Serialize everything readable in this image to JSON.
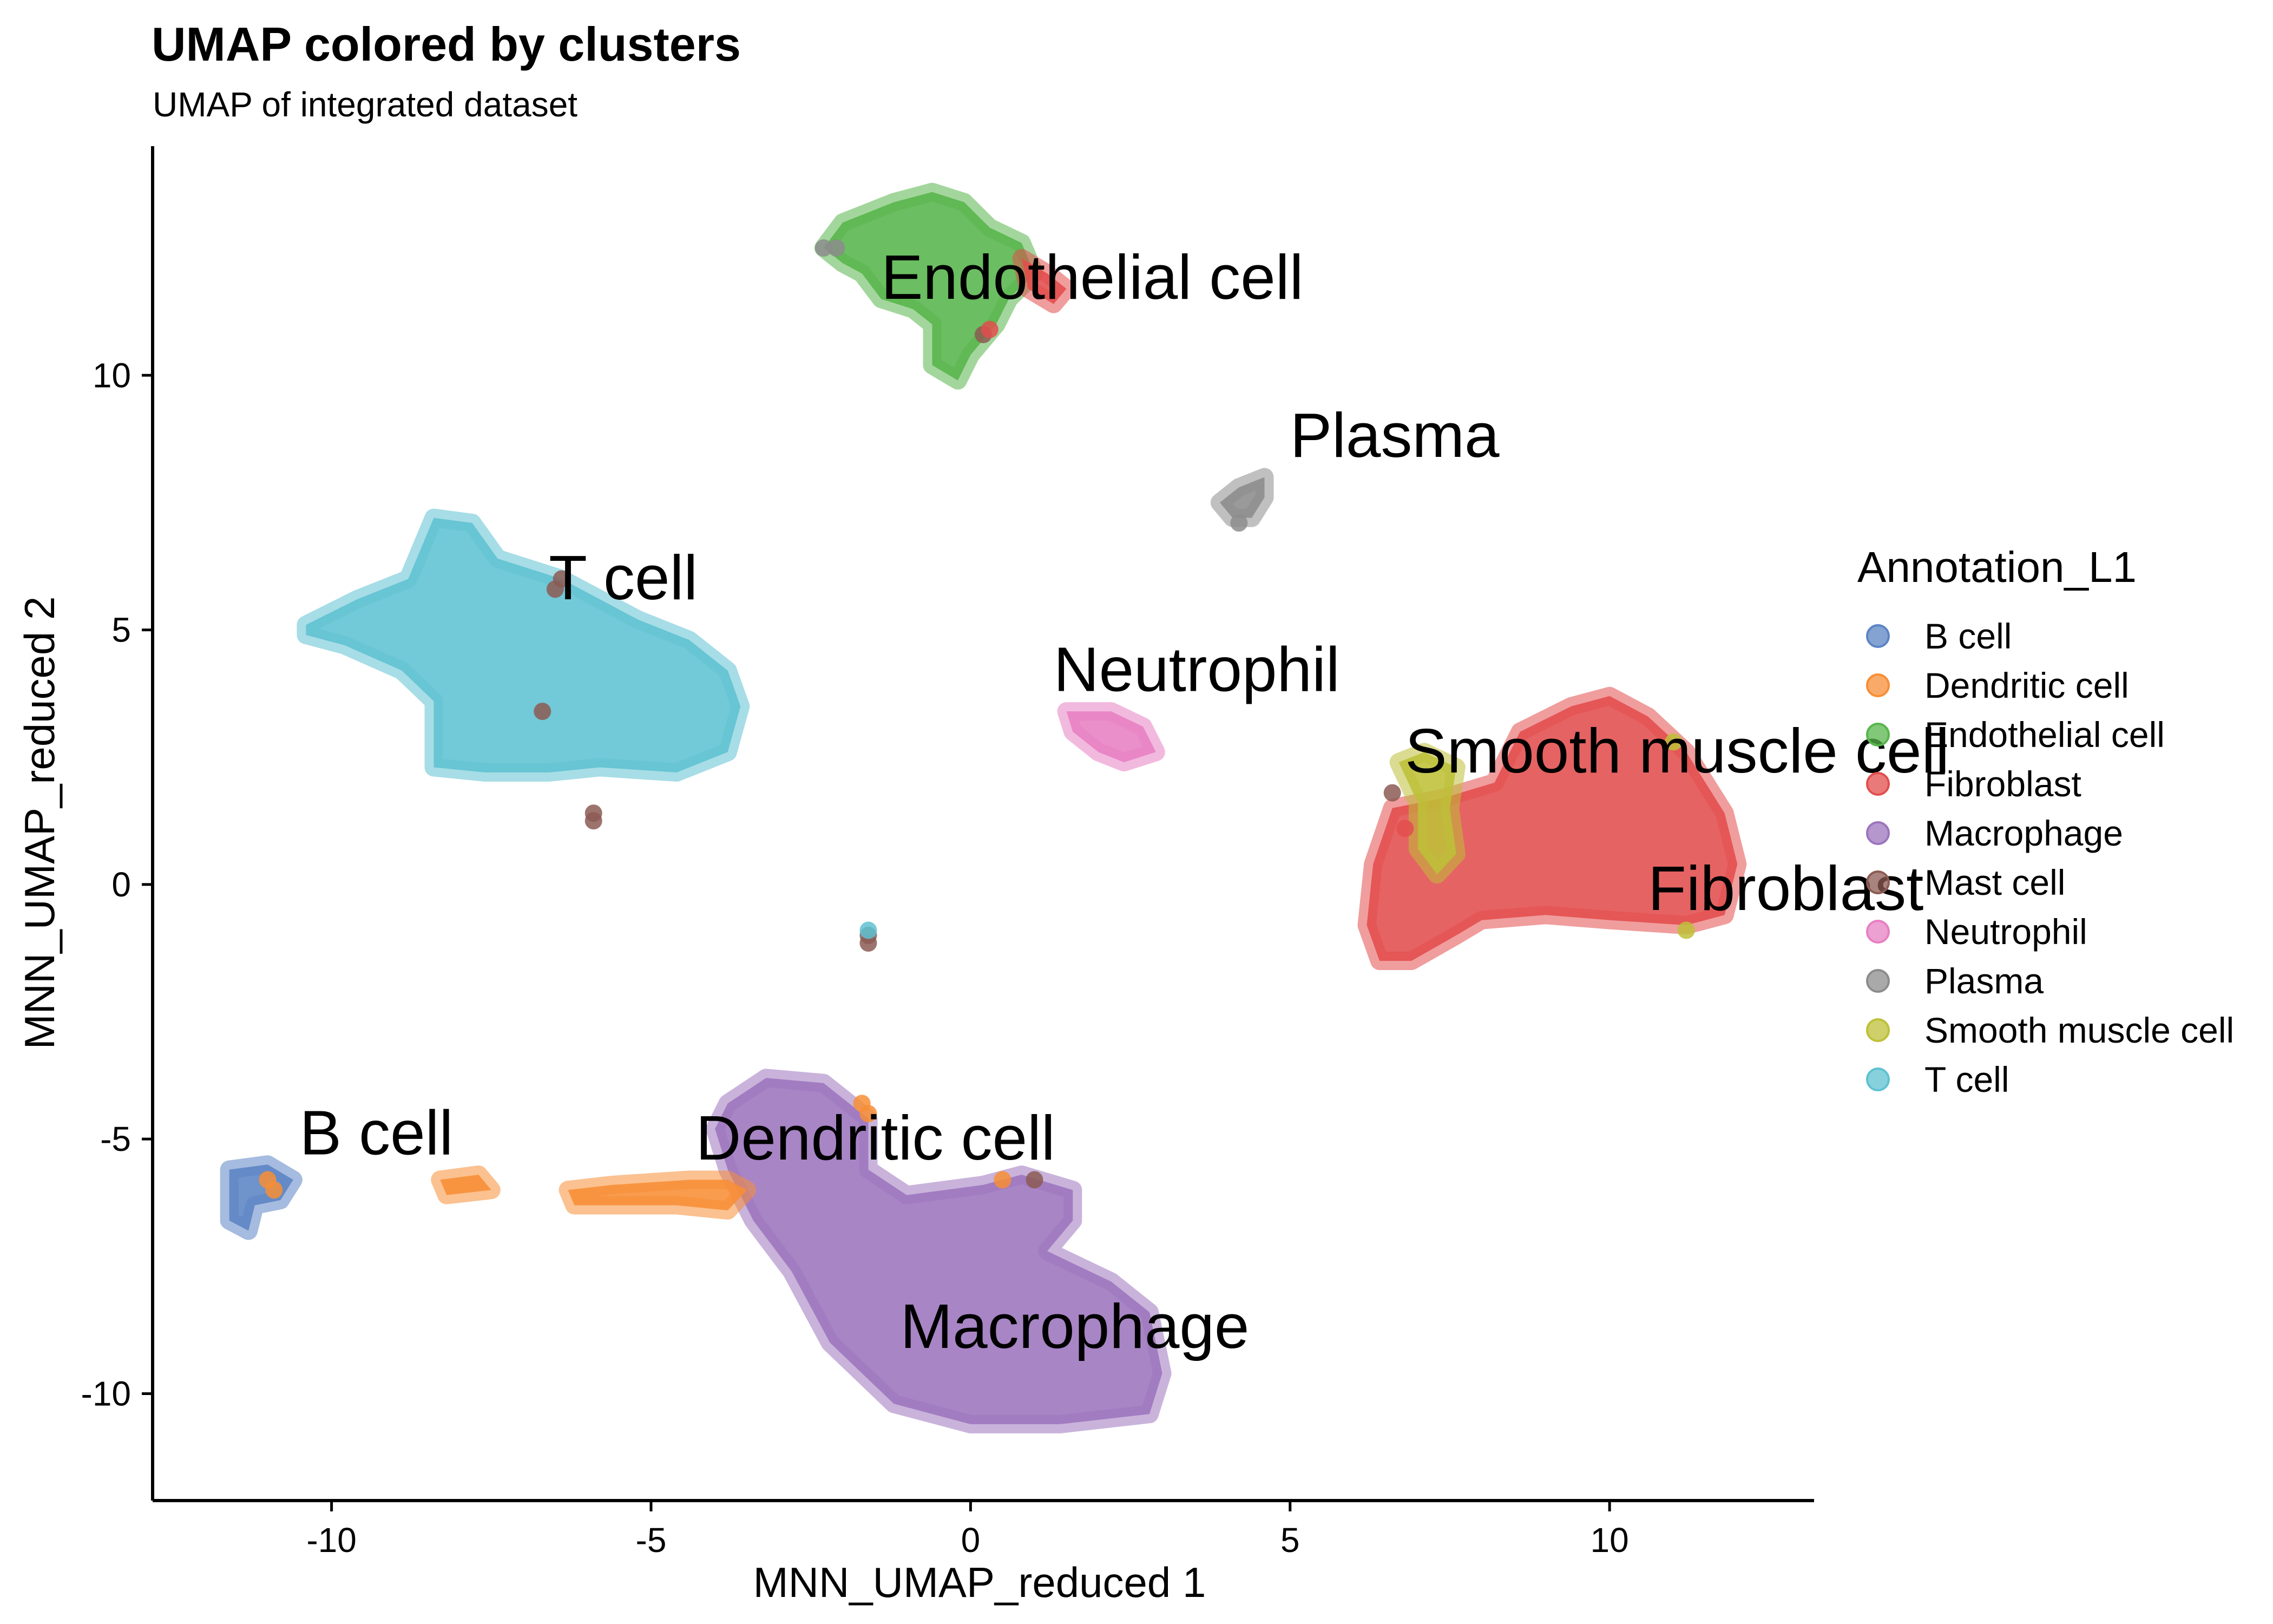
{
  "chart_data": {
    "type": "scatter",
    "title": "UMAP colored by clusters",
    "subtitle": "UMAP of integrated dataset",
    "xlabel": "MNN_UMAP_reduced 1",
    "ylabel": "MNN_UMAP_reduced 2",
    "xlim": [
      -12.8,
      13.2
    ],
    "ylim": [
      -12.1,
      14.5
    ],
    "xticks": [
      -10,
      -5,
      0,
      5,
      10
    ],
    "yticks": [
      -10,
      -5,
      0,
      5,
      10
    ],
    "xtick_labels": [
      "-10",
      "-5",
      "0",
      "5",
      "10"
    ],
    "ytick_labels": [
      "-10",
      "-5",
      "0",
      "5",
      "10"
    ],
    "grid": false,
    "legend": {
      "title": "Annotation_L1",
      "position": "right",
      "entries": [
        {
          "name": "B cell",
          "color": "#5b84c4"
        },
        {
          "name": "Dendritic cell",
          "color": "#f88e35"
        },
        {
          "name": "Endothelial cell",
          "color": "#57b54b"
        },
        {
          "name": "Fibroblast",
          "color": "#e34d4d"
        },
        {
          "name": "Macrophage",
          "color": "#9c74bd"
        },
        {
          "name": "Mast cell",
          "color": "#8c5b53"
        },
        {
          "name": "Neutrophil",
          "color": "#e780c3"
        },
        {
          "name": "Plasma",
          "color": "#8c8c8c"
        },
        {
          "name": "Smooth muscle cell",
          "color": "#bec038"
        },
        {
          "name": "T cell",
          "color": "#5fc1d1"
        }
      ]
    },
    "clusters": [
      {
        "name": "T cell",
        "color": "#5fc1d1",
        "label": {
          "text": "T cell",
          "x": -6.6,
          "y": 5.6
        },
        "polygon": [
          [
            -10.4,
            5.1
          ],
          [
            -9.6,
            5.6
          ],
          [
            -8.8,
            6.0
          ],
          [
            -8.4,
            7.2
          ],
          [
            -7.8,
            7.1
          ],
          [
            -7.4,
            6.4
          ],
          [
            -6.4,
            6.0
          ],
          [
            -5.2,
            5.2
          ],
          [
            -4.4,
            4.8
          ],
          [
            -3.8,
            4.2
          ],
          [
            -3.6,
            3.5
          ],
          [
            -3.8,
            2.6
          ],
          [
            -4.6,
            2.2
          ],
          [
            -5.8,
            2.3
          ],
          [
            -6.6,
            2.2
          ],
          [
            -7.6,
            2.2
          ],
          [
            -8.4,
            2.3
          ],
          [
            -8.4,
            3.6
          ],
          [
            -8.9,
            4.2
          ],
          [
            -9.8,
            4.7
          ],
          [
            -10.4,
            4.9
          ]
        ]
      },
      {
        "name": "Endothelial cell",
        "color": "#57b54b",
        "label": {
          "text": "Endothelial cell",
          "x": -1.4,
          "y": 11.5
        },
        "polygon": [
          [
            -2.3,
            12.5
          ],
          [
            -2.0,
            13.0
          ],
          [
            -1.2,
            13.4
          ],
          [
            -0.6,
            13.6
          ],
          [
            -0.1,
            13.4
          ],
          [
            0.3,
            12.9
          ],
          [
            0.8,
            12.6
          ],
          [
            1.0,
            12.0
          ],
          [
            0.6,
            11.5
          ],
          [
            0.4,
            11.0
          ],
          [
            0.0,
            10.4
          ],
          [
            -0.2,
            9.9
          ],
          [
            -0.6,
            10.2
          ],
          [
            -0.6,
            11.0
          ],
          [
            -0.9,
            11.3
          ],
          [
            -1.4,
            11.5
          ],
          [
            -1.7,
            12.0
          ],
          [
            -2.0,
            12.2
          ]
        ]
      },
      {
        "name": "Fibroblast",
        "color": "#e34d4d",
        "label": {
          "text": "Fibroblast",
          "x": 10.6,
          "y": -0.5
        },
        "polygon": [
          [
            6.2,
            -0.8
          ],
          [
            6.3,
            0.4
          ],
          [
            6.6,
            1.5
          ],
          [
            7.4,
            1.7
          ],
          [
            8.2,
            2.0
          ],
          [
            8.6,
            3.0
          ],
          [
            9.4,
            3.5
          ],
          [
            10.0,
            3.7
          ],
          [
            10.6,
            3.3
          ],
          [
            11.2,
            2.6
          ],
          [
            11.8,
            1.4
          ],
          [
            12.0,
            0.4
          ],
          [
            11.8,
            -0.6
          ],
          [
            11.2,
            -0.8
          ],
          [
            10.0,
            -0.7
          ],
          [
            9.0,
            -0.6
          ],
          [
            8.0,
            -0.7
          ],
          [
            7.6,
            -1.0
          ],
          [
            6.9,
            -1.5
          ],
          [
            6.4,
            -1.5
          ]
        ]
      },
      {
        "name": "Fibroblast",
        "color": "#e34d4d",
        "polygon": [
          [
            0.8,
            12.3
          ],
          [
            1.2,
            12.0
          ],
          [
            1.5,
            11.7
          ],
          [
            1.3,
            11.4
          ],
          [
            0.9,
            11.7
          ]
        ]
      },
      {
        "name": "Macrophage",
        "color": "#9c74bd",
        "label": {
          "text": "Macrophage",
          "x": -1.1,
          "y": -9.1
        },
        "polygon": [
          [
            -3.8,
            -4.3
          ],
          [
            -3.2,
            -3.8
          ],
          [
            -2.3,
            -3.9
          ],
          [
            -1.6,
            -4.6
          ],
          [
            -1.6,
            -5.6
          ],
          [
            -1.0,
            -6.1
          ],
          [
            0.2,
            -5.9
          ],
          [
            0.8,
            -5.7
          ],
          [
            1.6,
            -6.0
          ],
          [
            1.6,
            -6.6
          ],
          [
            1.2,
            -7.2
          ],
          [
            2.2,
            -7.8
          ],
          [
            2.8,
            -8.4
          ],
          [
            3.0,
            -9.6
          ],
          [
            2.8,
            -10.4
          ],
          [
            1.4,
            -10.6
          ],
          [
            0.0,
            -10.6
          ],
          [
            -1.2,
            -10.2
          ],
          [
            -2.2,
            -9.0
          ],
          [
            -2.8,
            -7.6
          ],
          [
            -3.4,
            -6.6
          ],
          [
            -3.8,
            -5.6
          ],
          [
            -4.0,
            -4.8
          ]
        ]
      },
      {
        "name": "Dendritic cell",
        "color": "#f88e35",
        "label": {
          "text": "Dendritic cell",
          "x": -4.3,
          "y": -5.4
        },
        "polygon": [
          [
            -6.3,
            -6.0
          ],
          [
            -5.6,
            -5.9
          ],
          [
            -4.4,
            -5.8
          ],
          [
            -3.8,
            -5.8
          ],
          [
            -3.5,
            -6.0
          ],
          [
            -3.8,
            -6.4
          ],
          [
            -4.6,
            -6.3
          ],
          [
            -5.6,
            -6.3
          ],
          [
            -6.2,
            -6.3
          ]
        ]
      },
      {
        "name": "Dendritic cell",
        "color": "#f88e35",
        "polygon": [
          [
            -8.3,
            -5.8
          ],
          [
            -7.7,
            -5.7
          ],
          [
            -7.5,
            -6.0
          ],
          [
            -8.2,
            -6.1
          ]
        ]
      },
      {
        "name": "B cell",
        "color": "#5b84c4",
        "label": {
          "text": "B cell",
          "x": -10.5,
          "y": -5.3
        },
        "polygon": [
          [
            -11.6,
            -5.6
          ],
          [
            -11.0,
            -5.5
          ],
          [
            -10.6,
            -5.8
          ],
          [
            -10.8,
            -6.2
          ],
          [
            -11.2,
            -6.3
          ],
          [
            -11.3,
            -6.8
          ],
          [
            -11.6,
            -6.6
          ]
        ]
      },
      {
        "name": "Neutrophil",
        "color": "#e780c3",
        "label": {
          "text": "Neutrophil",
          "x": 1.3,
          "y": 3.8
        },
        "polygon": [
          [
            1.5,
            3.4
          ],
          [
            2.2,
            3.4
          ],
          [
            2.7,
            3.1
          ],
          [
            2.9,
            2.6
          ],
          [
            2.4,
            2.4
          ],
          [
            2.0,
            2.6
          ],
          [
            1.6,
            3.0
          ]
        ]
      },
      {
        "name": "Smooth muscle cell",
        "color": "#bec038",
        "label": {
          "text": "Smooth muscle cell",
          "x": 6.8,
          "y": 2.2
        },
        "polygon": [
          [
            6.7,
            2.4
          ],
          [
            7.1,
            2.6
          ],
          [
            7.6,
            2.3
          ],
          [
            7.5,
            1.5
          ],
          [
            7.6,
            0.6
          ],
          [
            7.3,
            0.2
          ],
          [
            7.0,
            0.7
          ],
          [
            7.0,
            1.6
          ]
        ]
      },
      {
        "name": "Plasma",
        "color": "#8c8c8c",
        "label": {
          "text": "Plasma",
          "x": 5.0,
          "y": 8.4
        },
        "polygon": [
          [
            3.9,
            7.5
          ],
          [
            4.2,
            7.8
          ],
          [
            4.6,
            8.0
          ],
          [
            4.6,
            7.6
          ],
          [
            4.4,
            7.2
          ],
          [
            4.1,
            7.2
          ]
        ]
      }
    ],
    "points": [
      {
        "color": "#8c5b53",
        "x": -6.4,
        "y": 6.0
      },
      {
        "color": "#8c5b53",
        "x": -6.5,
        "y": 5.8
      },
      {
        "color": "#8c5b53",
        "x": -6.7,
        "y": 3.4
      },
      {
        "color": "#8c5b53",
        "x": -5.9,
        "y": 1.4
      },
      {
        "color": "#8c5b53",
        "x": -5.9,
        "y": 1.25
      },
      {
        "color": "#8c5b53",
        "x": -1.6,
        "y": -1.0
      },
      {
        "color": "#8c5b53",
        "x": -1.6,
        "y": -1.15
      },
      {
        "color": "#8c5b53",
        "x": 6.6,
        "y": 1.8
      },
      {
        "color": "#8c5b53",
        "x": 1.0,
        "y": -5.8
      },
      {
        "color": "#8c5b53",
        "x": 0.2,
        "y": 10.8
      },
      {
        "color": "#8c8c8c",
        "x": -2.1,
        "y": 12.5
      },
      {
        "color": "#8c8c8c",
        "x": -2.3,
        "y": 12.5
      },
      {
        "color": "#8c8c8c",
        "x": 4.2,
        "y": 7.1
      },
      {
        "color": "#f88e35",
        "x": -1.6,
        "y": -4.5
      },
      {
        "color": "#f88e35",
        "x": -1.7,
        "y": -4.3
      },
      {
        "color": "#f88e35",
        "x": 0.5,
        "y": -5.8
      },
      {
        "color": "#f88e35",
        "x": -10.9,
        "y": -6.0
      },
      {
        "color": "#f88e35",
        "x": -11.0,
        "y": -5.8
      },
      {
        "color": "#e34d4d",
        "x": 0.3,
        "y": 10.9
      },
      {
        "color": "#bec038",
        "x": 11.0,
        "y": 2.8
      },
      {
        "color": "#bec038",
        "x": 11.2,
        "y": -0.9
      },
      {
        "color": "#5fc1d1",
        "x": -1.6,
        "y": -0.9
      },
      {
        "color": "#e34d4d",
        "x": 6.8,
        "y": 1.1
      }
    ]
  }
}
